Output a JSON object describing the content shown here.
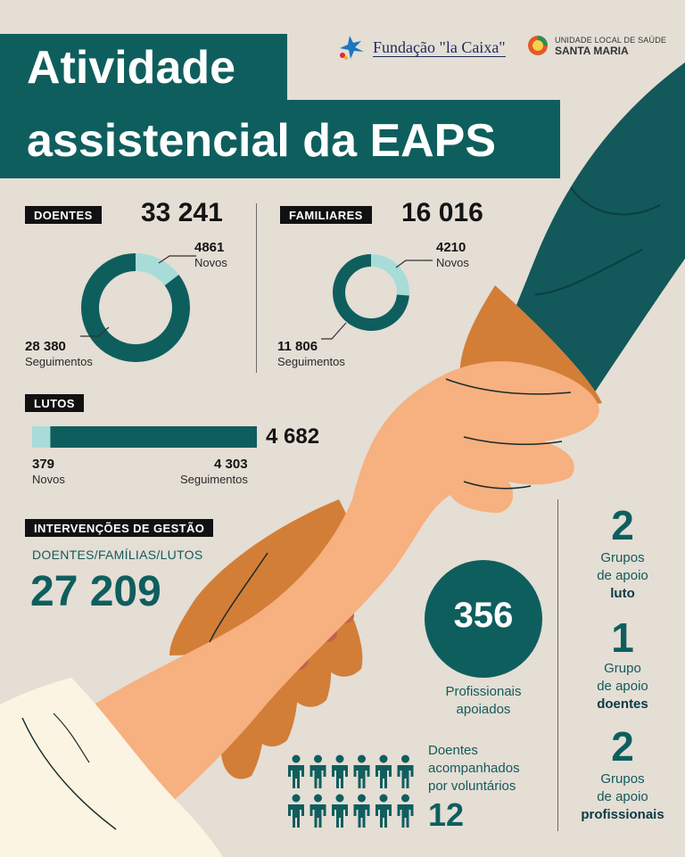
{
  "header": {
    "sponsor_logo_text": "Fundação \"la Caixa\"",
    "partner_line1": "UNIDADE LOCAL DE SAÚDE",
    "partner_line2": "SANTA MARIA",
    "title_line1": "Atividade",
    "title_line2": "assistencial da EAPS"
  },
  "colors": {
    "teal": "#0f5e5e",
    "light_teal": "#a8dcd9",
    "background": "#e4ded5",
    "skin": "#f7b07f",
    "dark_skin": "#d27e37",
    "sleeve": "#13585a"
  },
  "sections": {
    "doentes": {
      "tag": "DOENTES",
      "total": "33 241",
      "novos_value": "4861",
      "novos_label": "Novos",
      "seg_value": "28 380",
      "seg_label": "Seguimentos"
    },
    "familiares": {
      "tag": "FAMILIARES",
      "total": "16 016",
      "novos_value": "4210",
      "novos_label": "Novos",
      "seg_value": "11 806",
      "seg_label": "Seguimentos"
    },
    "lutos": {
      "tag": "LUTOS",
      "total": "4 682",
      "novos_value": "379",
      "novos_label": "Novos",
      "seg_value": "4 303",
      "seg_label": "Seguimentos"
    },
    "gestao": {
      "tag": "INTERVENÇÕES DE GESTÃO",
      "subtitle": "DOENTES/FAMÍLIAS/LUTOS",
      "total": "27 209"
    },
    "profissionais": {
      "value": "356",
      "label_1": "Profissionais",
      "label_2": "apoiados"
    },
    "voluntarios": {
      "label_1": "Doentes",
      "label_2": "acompanhados",
      "label_3": "por voluntários",
      "value": "12",
      "icon_name": "person-icon",
      "icon_count": 12
    },
    "grupos": [
      {
        "value": "2",
        "line1": "Grupos",
        "line2": "de apoio",
        "bold": "luto"
      },
      {
        "value": "1",
        "line1": "Grupo",
        "line2": "de apoio",
        "bold": "doentes"
      },
      {
        "value": "2",
        "line1": "Grupos",
        "line2": "de apoio",
        "bold": "profissionais"
      }
    ]
  },
  "chart_data": [
    {
      "type": "pie",
      "title": "DOENTES",
      "total": 33241,
      "slices": [
        {
          "name": "Novos",
          "value": 4861,
          "color": "#a8dcd9"
        },
        {
          "name": "Seguimentos",
          "value": 28380,
          "color": "#0f5e5e"
        }
      ]
    },
    {
      "type": "pie",
      "title": "FAMILIARES",
      "total": 16016,
      "slices": [
        {
          "name": "Novos",
          "value": 4210,
          "color": "#a8dcd9"
        },
        {
          "name": "Seguimentos",
          "value": 11806,
          "color": "#0f5e5e"
        }
      ]
    },
    {
      "type": "bar",
      "title": "LUTOS",
      "total": 4682,
      "categories": [
        "Novos",
        "Seguimentos"
      ],
      "values": [
        379,
        4303
      ],
      "stacked": true,
      "orientation": "horizontal",
      "colors": [
        "#a8dcd9",
        "#0f5e5e"
      ]
    }
  ]
}
